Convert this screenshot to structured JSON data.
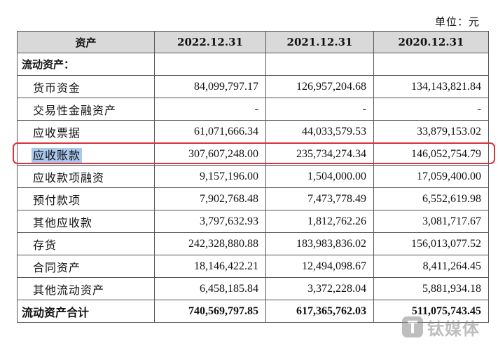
{
  "unit_label": "单位：元",
  "headers": [
    "资产",
    "2022.12.31",
    "2021.12.31",
    "2020.12.31"
  ],
  "section_title": "流动资产：",
  "rows": [
    {
      "label": "货币资金",
      "v2022": "84,099,797.17",
      "v2021": "126,957,204.68",
      "v2020": "134,143,821.84"
    },
    {
      "label": "交易性金融资产",
      "v2022": "-",
      "v2021": "-",
      "v2020": "-"
    },
    {
      "label": "应收票据",
      "v2022": "61,071,666.34",
      "v2021": "44,033,579.53",
      "v2020": "33,879,153.02"
    },
    {
      "label": "应收账款",
      "v2022": "307,607,248.00",
      "v2021": "235,734,274.34",
      "v2020": "146,052,754.79"
    },
    {
      "label": "应收款项融资",
      "v2022": "9,157,196.00",
      "v2021": "1,504,000.00",
      "v2020": "17,059,400.00"
    },
    {
      "label": "预付款项",
      "v2022": "7,902,768.48",
      "v2021": "7,473,778.49",
      "v2020": "6,552,619.98"
    },
    {
      "label": "其他应收款",
      "v2022": "3,797,632.93",
      "v2021": "1,812,762.26",
      "v2020": "3,081,717.67"
    },
    {
      "label": "存货",
      "v2022": "242,328,880.88",
      "v2021": "183,983,836.02",
      "v2020": "156,013,077.52"
    },
    {
      "label": "合同资产",
      "v2022": "18,146,422.21",
      "v2021": "12,494,098.67",
      "v2020": "8,411,264.45"
    },
    {
      "label": "其他流动资产",
      "v2022": "6,458,185.84",
      "v2021": "3,372,228.04",
      "v2020": "5,881,934.18"
    }
  ],
  "total": {
    "label": "流动资产合计",
    "v2022": "740,569,797.85",
    "v2021": "617,365,762.03",
    "v2020": "511,075,743.45"
  },
  "highlight_color": "#d9343b",
  "selection_color": "#a9c8ee",
  "watermark_icon": "tmtpost-logo-icon",
  "watermark_text": "钛媒体"
}
